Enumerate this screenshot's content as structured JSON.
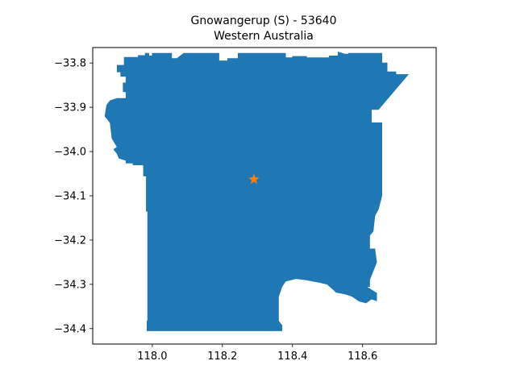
{
  "title": {
    "line1": "Gnowangerup (S) - 53640",
    "line2": "Western Australia"
  },
  "colors": {
    "region_fill": "#1f77b4",
    "marker": "#ff7f0e",
    "axes": "#000000",
    "background": "#ffffff"
  },
  "map": {
    "xlim": [
      117.83,
      118.81
    ],
    "ylim": [
      -34.435,
      -33.765
    ],
    "x_ticks": [
      118.0,
      118.2,
      118.4,
      118.6
    ],
    "x_tick_labels": [
      "118.0",
      "118.2",
      "118.4",
      "118.6"
    ],
    "y_ticks": [
      -33.8,
      -33.9,
      -34.0,
      -34.1,
      -34.2,
      -34.3,
      -34.4
    ],
    "y_tick_labels": [
      "−33.8",
      "−33.9",
      "−34.0",
      "−34.1",
      "−34.2",
      "−34.3",
      "−34.4"
    ],
    "marker": {
      "shape": "star",
      "lon": 118.29,
      "lat": -34.063
    },
    "boundary": [
      [
        117.9,
        -33.805
      ],
      [
        117.92,
        -33.805
      ],
      [
        117.92,
        -33.787
      ],
      [
        117.96,
        -33.787
      ],
      [
        117.96,
        -33.783
      ],
      [
        117.98,
        -33.783
      ],
      [
        117.98,
        -33.778
      ],
      [
        117.99,
        -33.778
      ],
      [
        117.99,
        -33.784
      ],
      [
        118.0,
        -33.784
      ],
      [
        118.0,
        -33.778
      ],
      [
        118.055,
        -33.778
      ],
      [
        118.055,
        -33.79
      ],
      [
        118.07,
        -33.79
      ],
      [
        118.09,
        -33.778
      ],
      [
        118.19,
        -33.778
      ],
      [
        118.19,
        -33.795
      ],
      [
        118.215,
        -33.795
      ],
      [
        118.215,
        -33.79
      ],
      [
        118.245,
        -33.79
      ],
      [
        118.245,
        -33.778
      ],
      [
        118.38,
        -33.778
      ],
      [
        118.38,
        -33.788
      ],
      [
        118.4,
        -33.788
      ],
      [
        118.4,
        -33.785
      ],
      [
        118.44,
        -33.785
      ],
      [
        118.44,
        -33.788
      ],
      [
        118.505,
        -33.788
      ],
      [
        118.505,
        -33.784
      ],
      [
        118.53,
        -33.784
      ],
      [
        118.53,
        -33.775
      ],
      [
        118.55,
        -33.78
      ],
      [
        118.56,
        -33.78
      ],
      [
        118.56,
        -33.778
      ],
      [
        118.655,
        -33.778
      ],
      [
        118.655,
        -33.8
      ],
      [
        118.67,
        -33.8
      ],
      [
        118.67,
        -33.82
      ],
      [
        118.695,
        -33.82
      ],
      [
        118.695,
        -33.826
      ],
      [
        118.73,
        -33.826
      ],
      [
        118.645,
        -33.905
      ],
      [
        118.625,
        -33.905
      ],
      [
        118.625,
        -33.935
      ],
      [
        118.655,
        -33.935
      ],
      [
        118.655,
        -34.1
      ],
      [
        118.645,
        -34.13
      ],
      [
        118.635,
        -34.145
      ],
      [
        118.63,
        -34.18
      ],
      [
        118.62,
        -34.19
      ],
      [
        118.62,
        -34.22
      ],
      [
        118.635,
        -34.22
      ],
      [
        118.64,
        -34.25
      ],
      [
        118.62,
        -34.29
      ],
      [
        118.62,
        -34.305
      ],
      [
        118.61,
        -34.305
      ],
      [
        118.64,
        -34.32
      ],
      [
        118.64,
        -34.337
      ],
      [
        118.625,
        -34.333
      ],
      [
        118.61,
        -34.342
      ],
      [
        118.59,
        -34.338
      ],
      [
        118.57,
        -34.327
      ],
      [
        118.55,
        -34.322
      ],
      [
        118.525,
        -34.318
      ],
      [
        118.5,
        -34.3
      ],
      [
        118.48,
        -34.296
      ],
      [
        118.44,
        -34.29
      ],
      [
        118.41,
        -34.287
      ],
      [
        118.38,
        -34.293
      ],
      [
        118.37,
        -34.305
      ],
      [
        118.36,
        -34.328
      ],
      [
        118.36,
        -34.383
      ],
      [
        118.37,
        -34.393
      ],
      [
        118.37,
        -34.405
      ],
      [
        117.985,
        -34.405
      ],
      [
        117.985,
        -34.383
      ],
      [
        117.987,
        -34.383
      ],
      [
        117.987,
        -34.135
      ],
      [
        117.983,
        -34.135
      ],
      [
        117.983,
        -34.055
      ],
      [
        117.975,
        -34.055
      ],
      [
        117.975,
        -34.03
      ],
      [
        117.945,
        -34.03
      ],
      [
        117.945,
        -34.026
      ],
      [
        117.925,
        -34.026
      ],
      [
        117.925,
        -34.02
      ],
      [
        117.905,
        -34.015
      ],
      [
        117.9,
        -34.005
      ],
      [
        117.89,
        -33.995
      ],
      [
        117.9,
        -33.99
      ],
      [
        117.885,
        -33.97
      ],
      [
        117.88,
        -33.935
      ],
      [
        117.865,
        -33.92
      ],
      [
        117.87,
        -33.895
      ],
      [
        117.88,
        -33.885
      ],
      [
        117.9,
        -33.88
      ],
      [
        117.925,
        -33.88
      ],
      [
        117.925,
        -33.865
      ],
      [
        117.917,
        -33.865
      ],
      [
        117.917,
        -33.845
      ],
      [
        117.925,
        -33.845
      ],
      [
        117.925,
        -33.83
      ],
      [
        117.91,
        -33.83
      ],
      [
        117.91,
        -33.82
      ],
      [
        117.9,
        -33.82
      ]
    ]
  }
}
